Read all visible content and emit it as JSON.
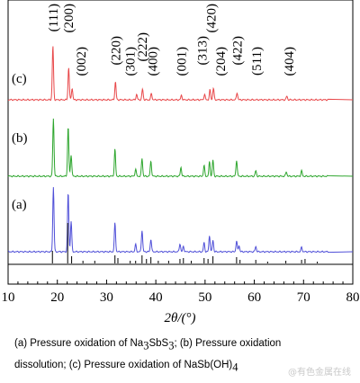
{
  "chart_data": {
    "type": "line",
    "xlabel": "2θ/(°)",
    "ylabel": "",
    "xlim": [
      10,
      80
    ],
    "xticks": [
      "10",
      "20",
      "30",
      "40",
      "50",
      "60",
      "70",
      "80"
    ],
    "grid": false,
    "series": [
      {
        "name": "(c)",
        "color": "#e8484a",
        "peaks": [
          [
            19.1,
            60
          ],
          [
            22.3,
            36
          ],
          [
            23.0,
            13
          ],
          [
            31.8,
            20
          ],
          [
            36.1,
            6
          ],
          [
            37.3,
            12
          ],
          [
            39.1,
            7
          ],
          [
            45.2,
            5
          ],
          [
            49.9,
            6
          ],
          [
            51.0,
            11
          ],
          [
            51.7,
            13
          ],
          [
            56.5,
            8
          ],
          [
            66.6,
            4
          ]
        ]
      },
      {
        "name": "(b)",
        "color": "#2ea62e",
        "peaks": [
          [
            19.2,
            64
          ],
          [
            22.2,
            55
          ],
          [
            22.8,
            24
          ],
          [
            31.7,
            30
          ],
          [
            35.9,
            8
          ],
          [
            37.2,
            20
          ],
          [
            39.0,
            17
          ],
          [
            45.1,
            10
          ],
          [
            49.8,
            12
          ],
          [
            50.9,
            16
          ],
          [
            51.6,
            18
          ],
          [
            56.4,
            18
          ],
          [
            60.3,
            6
          ],
          [
            66.5,
            5
          ],
          [
            69.6,
            6
          ]
        ]
      },
      {
        "name": "(a)",
        "color": "#5050d8",
        "peaks": [
          [
            19.2,
            72
          ],
          [
            22.2,
            66
          ],
          [
            22.8,
            34
          ],
          [
            31.7,
            32
          ],
          [
            35.9,
            8
          ],
          [
            37.2,
            24
          ],
          [
            39.0,
            14
          ],
          [
            44.9,
            9
          ],
          [
            45.6,
            6
          ],
          [
            49.8,
            10
          ],
          [
            50.9,
            18
          ],
          [
            51.6,
            13
          ],
          [
            56.4,
            12
          ],
          [
            56.9,
            7
          ],
          [
            60.3,
            6
          ],
          [
            69.6,
            5
          ]
        ]
      }
    ],
    "reference_sticks": [
      [
        19.0,
        14
      ],
      [
        22.1,
        45
      ],
      [
        22.9,
        8
      ],
      [
        25.2,
        3
      ],
      [
        27.6,
        3
      ],
      [
        31.7,
        9
      ],
      [
        32.3,
        6
      ],
      [
        34.8,
        3
      ],
      [
        35.9,
        3
      ],
      [
        37.2,
        9
      ],
      [
        38.1,
        5
      ],
      [
        39.0,
        7
      ],
      [
        40.5,
        3
      ],
      [
        42.6,
        3
      ],
      [
        44.9,
        5
      ],
      [
        45.6,
        6
      ],
      [
        47.2,
        3
      ],
      [
        49.8,
        6
      ],
      [
        50.6,
        5
      ],
      [
        51.6,
        8
      ],
      [
        56.4,
        7
      ],
      [
        57.1,
        4
      ],
      [
        60.3,
        4
      ],
      [
        62.7,
        2
      ],
      [
        66.4,
        3
      ],
      [
        69.6,
        4
      ],
      [
        70.3,
        5
      ],
      [
        72.8,
        2
      ]
    ],
    "annotations": [
      {
        "text": "(111)",
        "x": 19.1
      },
      {
        "text": "(200)",
        "x": 22.2
      },
      {
        "text": "(002)",
        "x": 24.8
      },
      {
        "text": "(220)",
        "x": 31.8
      },
      {
        "text": "(301)",
        "x": 34.8
      },
      {
        "text": "(222)",
        "x": 37.2
      },
      {
        "text": "(400)",
        "x": 39.3
      },
      {
        "text": "(001)",
        "x": 45.2
      },
      {
        "text": "(313)",
        "x": 49.4
      },
      {
        "text": "(420)",
        "x": 51.2
      },
      {
        "text": "(204)",
        "x": 53.1
      },
      {
        "text": "(422)",
        "x": 56.5
      },
      {
        "text": "(511)",
        "x": 60.4
      },
      {
        "text": "(404)",
        "x": 67.0
      }
    ]
  },
  "caption": {
    "line1_prefix": "(a) Pressure oxidation of Na",
    "line1_sub1": "3",
    "line1_mid": "SbS",
    "line1_sub2": "3",
    "line1_suffix": "; (b) Pressure oxidation",
    "line2": "dissolution; (c) Pressure oxidation of NaSb(OH)",
    "line2_sub": "4"
  },
  "watermark": "@有色金属在线"
}
